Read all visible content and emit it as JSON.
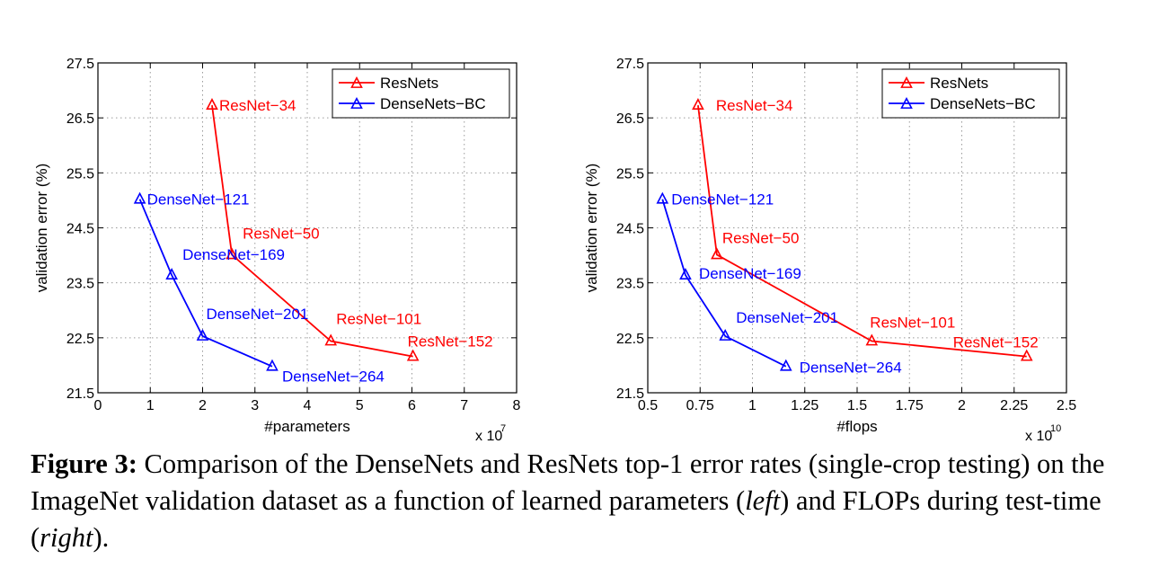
{
  "caption": {
    "label": "Figure 3:",
    "text_1": " Comparison of the DenseNets and ResNets top-1 error rates (single-crop testing) on the ImageNet validation dataset as a function of learned parameters (",
    "emph_1": "left",
    "text_2": ") and FLOPs during test-time (",
    "emph_2": "right",
    "text_3": ")."
  },
  "colors": {
    "resnets": "#ff0000",
    "densenets": "#0000ff"
  },
  "chart_data": [
    {
      "type": "line",
      "title": "",
      "xlabel": "#parameters",
      "ylabel": "validation error (%)",
      "x_multiplier_label": "x 10",
      "x_multiplier_exponent": "7",
      "xlim": [
        0,
        8
      ],
      "ylim": [
        21.5,
        27.5
      ],
      "xticks": [
        0,
        1,
        2,
        3,
        4,
        5,
        6,
        7,
        8
      ],
      "xtick_labels": [
        "0",
        "1",
        "2",
        "3",
        "4",
        "5",
        "6",
        "7",
        "8"
      ],
      "yticks": [
        21.5,
        22.5,
        23.5,
        24.5,
        25.5,
        26.5,
        27.5
      ],
      "ytick_labels": [
        "21.5",
        "22.5",
        "23.5",
        "24.5",
        "25.5",
        "26.5",
        "27.5"
      ],
      "grid": true,
      "legend": "top-right",
      "series": [
        {
          "name": "ResNets",
          "color": "#ff0000",
          "marker": "triangle",
          "x": [
            2.18,
            2.56,
            4.45,
            6.02
          ],
          "y": [
            26.73,
            24.01,
            22.44,
            22.16
          ],
          "point_labels": [
            "ResNet−34",
            "ResNet−50",
            "ResNet−101",
            "ResNet−152"
          ]
        },
        {
          "name": "DenseNets−BC",
          "color": "#0000ff",
          "marker": "triangle",
          "x": [
            0.8,
            1.41,
            2.0,
            3.33
          ],
          "y": [
            25.02,
            23.64,
            22.53,
            21.98
          ],
          "point_labels": [
            "DenseNet−121",
            "DenseNet−169",
            "DenseNet−201",
            "DenseNet−264"
          ]
        }
      ]
    },
    {
      "type": "line",
      "title": "",
      "xlabel": "#flops",
      "ylabel": "validation error (%)",
      "x_multiplier_label": "x 10",
      "x_multiplier_exponent": "10",
      "xlim": [
        0.5,
        2.5
      ],
      "ylim": [
        21.5,
        27.5
      ],
      "xticks": [
        0.5,
        0.75,
        1.0,
        1.25,
        1.5,
        1.75,
        2.0,
        2.25,
        2.5
      ],
      "xtick_labels": [
        "0.5",
        "0.75",
        "1",
        "1.25",
        "1.5",
        "1.75",
        "2",
        "2.25",
        "2.5"
      ],
      "yticks": [
        21.5,
        22.5,
        23.5,
        24.5,
        25.5,
        26.5,
        27.5
      ],
      "ytick_labels": [
        "21.5",
        "22.5",
        "23.5",
        "24.5",
        "25.5",
        "26.5",
        "27.5"
      ],
      "grid": true,
      "legend": "top-right",
      "series": [
        {
          "name": "ResNets",
          "color": "#ff0000",
          "marker": "triangle",
          "x": [
            0.74,
            0.83,
            1.57,
            2.31
          ],
          "y": [
            26.73,
            24.01,
            22.44,
            22.16
          ],
          "point_labels": [
            "ResNet−34",
            "ResNet−50",
            "ResNet−101",
            "ResNet−152"
          ]
        },
        {
          "name": "DenseNets−BC",
          "color": "#0000ff",
          "marker": "triangle",
          "x": [
            0.57,
            0.68,
            0.87,
            1.16
          ],
          "y": [
            25.02,
            23.64,
            22.53,
            21.98
          ],
          "point_labels": [
            "DenseNet−121",
            "DenseNet−169",
            "DenseNet−201",
            "DenseNet−264"
          ]
        }
      ]
    }
  ]
}
